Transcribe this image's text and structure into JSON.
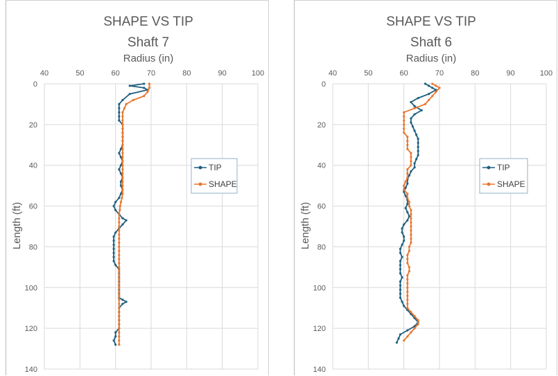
{
  "colors": {
    "tip": "#1f5f7f",
    "shape": "#e8772e",
    "grid": "#d9d9d9",
    "text": "#595959"
  },
  "chart_data": [
    {
      "type": "scatter",
      "title": "SHAPE VS TIP",
      "subtitle": "Shaft 7",
      "xlabel": "Radius (in)",
      "ylabel": "Length (ft)",
      "xlim": [
        40,
        100
      ],
      "ylim": [
        0,
        140
      ],
      "x_reversed": false,
      "y_reversed": true,
      "x_axis_position": "top",
      "x_ticks": [
        40,
        50,
        60,
        70,
        80,
        90,
        100
      ],
      "y_ticks": [
        0,
        20,
        40,
        60,
        80,
        100,
        120,
        140
      ],
      "grid": true,
      "legend": {
        "placement": "right",
        "entries": [
          "TIP",
          "SHAPE"
        ]
      },
      "series": [
        {
          "name": "TIP",
          "points": [
            [
              68,
              0
            ],
            [
              64,
              1
            ],
            [
              68,
              2
            ],
            [
              69,
              3
            ],
            [
              64,
              5
            ],
            [
              62,
              8
            ],
            [
              61,
              10
            ],
            [
              61,
              12
            ],
            [
              61,
              14
            ],
            [
              61,
              16
            ],
            [
              61,
              18
            ],
            [
              62,
              20
            ],
            [
              62,
              22
            ],
            [
              62,
              24
            ],
            [
              62,
              26
            ],
            [
              62,
              28
            ],
            [
              62,
              30
            ],
            [
              61.5,
              32
            ],
            [
              61,
              34
            ],
            [
              61.5,
              36
            ],
            [
              62,
              38
            ],
            [
              61.5,
              40
            ],
            [
              61,
              42
            ],
            [
              61.5,
              44
            ],
            [
              62,
              46
            ],
            [
              61.5,
              48
            ],
            [
              61.5,
              50
            ],
            [
              62,
              52
            ],
            [
              61.5,
              54
            ],
            [
              61,
              56
            ],
            [
              60,
              58
            ],
            [
              59.5,
              60
            ],
            [
              60,
              62
            ],
            [
              61,
              64
            ],
            [
              62,
              66
            ],
            [
              63,
              67
            ],
            [
              62,
              69
            ],
            [
              61,
              71
            ],
            [
              60,
              73
            ],
            [
              59.5,
              75
            ],
            [
              59.5,
              77
            ],
            [
              59.5,
              79
            ],
            [
              59.5,
              81
            ],
            [
              59.5,
              83
            ],
            [
              59.5,
              85
            ],
            [
              59.5,
              87
            ],
            [
              60,
              89
            ],
            [
              61,
              91
            ],
            [
              61,
              93
            ],
            [
              61,
              95
            ],
            [
              61,
              97
            ],
            [
              61,
              99
            ],
            [
              61,
              101
            ],
            [
              61,
              103
            ],
            [
              61,
              105
            ],
            [
              62,
              106
            ],
            [
              63,
              107
            ],
            [
              62,
              108
            ],
            [
              61,
              110
            ],
            [
              61,
              112
            ],
            [
              61,
              114
            ],
            [
              61,
              116
            ],
            [
              61,
              118
            ],
            [
              61,
              120
            ],
            [
              60,
              122
            ],
            [
              60,
              124
            ],
            [
              59.5,
              126
            ],
            [
              60,
              128
            ]
          ]
        },
        {
          "name": "SHAPE",
          "points": [
            [
              69.5,
              0
            ],
            [
              69.5,
              2
            ],
            [
              69,
              4
            ],
            [
              68,
              6
            ],
            [
              65,
              8
            ],
            [
              63,
              10
            ],
            [
              62.5,
              12
            ],
            [
              62,
              14
            ],
            [
              62,
              16
            ],
            [
              62,
              18
            ],
            [
              62,
              20
            ],
            [
              62,
              22
            ],
            [
              62,
              24
            ],
            [
              62,
              26
            ],
            [
              62,
              28
            ],
            [
              62,
              30
            ],
            [
              62,
              32
            ],
            [
              62,
              34
            ],
            [
              62,
              36
            ],
            [
              62,
              38
            ],
            [
              62,
              40
            ],
            [
              62,
              42
            ],
            [
              62,
              44
            ],
            [
              62,
              46
            ],
            [
              62,
              48
            ],
            [
              62,
              50
            ],
            [
              62,
              52
            ],
            [
              62,
              54
            ],
            [
              61.8,
              56
            ],
            [
              61.5,
              58
            ],
            [
              61.3,
              60
            ],
            [
              61.2,
              62
            ],
            [
              61,
              64
            ],
            [
              61,
              66
            ],
            [
              61,
              68
            ],
            [
              61,
              70
            ],
            [
              61,
              72
            ],
            [
              61,
              74
            ],
            [
              61,
              76
            ],
            [
              61,
              78
            ],
            [
              61,
              80
            ],
            [
              61,
              82
            ],
            [
              61,
              84
            ],
            [
              61,
              86
            ],
            [
              61,
              88
            ],
            [
              61,
              90
            ],
            [
              61,
              92
            ],
            [
              61,
              94
            ],
            [
              61,
              96
            ],
            [
              61,
              98
            ],
            [
              61,
              100
            ],
            [
              61,
              102
            ],
            [
              61,
              104
            ],
            [
              61,
              106
            ],
            [
              61,
              108
            ],
            [
              61,
              110
            ],
            [
              61,
              112
            ],
            [
              61,
              114
            ],
            [
              61,
              116
            ],
            [
              61,
              118
            ],
            [
              61,
              120
            ],
            [
              61,
              122
            ],
            [
              61,
              124
            ],
            [
              61,
              126
            ],
            [
              61,
              128
            ]
          ]
        }
      ]
    },
    {
      "type": "scatter",
      "title": "SHAPE VS TIP",
      "subtitle": "Shaft 6",
      "xlabel": "Radius (in)",
      "ylabel": "Length (ft)",
      "xlim": [
        40,
        100
      ],
      "ylim": [
        0,
        140
      ],
      "x_reversed": false,
      "y_reversed": true,
      "x_axis_position": "top",
      "x_ticks": [
        40,
        50,
        60,
        70,
        80,
        90,
        100
      ],
      "y_ticks": [
        0,
        20,
        40,
        60,
        80,
        100,
        120,
        140
      ],
      "grid": true,
      "legend": {
        "placement": "right",
        "entries": [
          "TIP",
          "SHAPE"
        ]
      },
      "series": [
        {
          "name": "TIP",
          "points": [
            [
              66,
              0
            ],
            [
              67,
              1
            ],
            [
              68,
              2
            ],
            [
              69,
              3
            ],
            [
              67,
              5
            ],
            [
              64,
              7
            ],
            [
              62,
              9
            ],
            [
              63,
              11
            ],
            [
              65,
              13
            ],
            [
              63,
              15
            ],
            [
              62,
              17
            ],
            [
              62,
              19
            ],
            [
              62.5,
              21
            ],
            [
              63,
              23
            ],
            [
              63.5,
              25
            ],
            [
              64,
              27
            ],
            [
              64,
              29
            ],
            [
              64,
              31
            ],
            [
              64,
              33
            ],
            [
              64,
              35
            ],
            [
              63.5,
              37
            ],
            [
              63,
              39
            ],
            [
              63,
              41
            ],
            [
              62,
              43
            ],
            [
              61.5,
              45
            ],
            [
              61,
              47
            ],
            [
              61,
              49
            ],
            [
              60.5,
              51
            ],
            [
              60,
              53
            ],
            [
              60.5,
              55
            ],
            [
              61,
              57
            ],
            [
              61,
              59
            ],
            [
              60.5,
              61
            ],
            [
              61,
              63
            ],
            [
              61.5,
              65
            ],
            [
              61,
              67
            ],
            [
              60,
              69
            ],
            [
              59.5,
              71
            ],
            [
              59.5,
              73
            ],
            [
              60,
              75
            ],
            [
              60,
              77
            ],
            [
              59.5,
              79
            ],
            [
              59,
              81
            ],
            [
              59,
              83
            ],
            [
              59.5,
              85
            ],
            [
              59,
              87
            ],
            [
              59,
              89
            ],
            [
              59,
              91
            ],
            [
              59,
              93
            ],
            [
              59.5,
              95
            ],
            [
              59,
              97
            ],
            [
              59,
              99
            ],
            [
              59,
              101
            ],
            [
              59,
              103
            ],
            [
              59,
              105
            ],
            [
              59.5,
              107
            ],
            [
              60,
              109
            ],
            [
              61,
              111
            ],
            [
              62,
              113
            ],
            [
              63,
              115
            ],
            [
              64,
              117
            ],
            [
              63,
              119
            ],
            [
              61,
              121
            ],
            [
              59,
              123
            ],
            [
              58.5,
              125
            ],
            [
              58,
              127
            ]
          ]
        },
        {
          "name": "SHAPE",
          "points": [
            [
              68,
              0
            ],
            [
              69,
              1
            ],
            [
              70,
              2
            ],
            [
              69,
              4
            ],
            [
              68,
              6
            ],
            [
              67,
              8
            ],
            [
              66,
              10
            ],
            [
              63,
              12
            ],
            [
              60,
              14
            ],
            [
              60,
              16
            ],
            [
              60,
              18
            ],
            [
              60,
              20
            ],
            [
              60,
              22
            ],
            [
              60,
              24
            ],
            [
              61,
              26
            ],
            [
              61,
              28
            ],
            [
              61,
              30
            ],
            [
              61,
              32
            ],
            [
              62,
              34
            ],
            [
              62,
              36
            ],
            [
              62,
              38
            ],
            [
              62,
              40
            ],
            [
              61,
              42
            ],
            [
              61,
              44
            ],
            [
              61,
              46
            ],
            [
              60.5,
              48
            ],
            [
              60,
              50
            ],
            [
              60,
              52
            ],
            [
              61,
              54
            ],
            [
              61,
              56
            ],
            [
              61.5,
              58
            ],
            [
              61.5,
              60
            ],
            [
              62,
              62
            ],
            [
              62,
              64
            ],
            [
              62,
              66
            ],
            [
              62,
              68
            ],
            [
              62,
              70
            ],
            [
              62,
              72
            ],
            [
              62,
              74
            ],
            [
              62,
              76
            ],
            [
              62,
              78
            ],
            [
              61.5,
              80
            ],
            [
              61.5,
              82
            ],
            [
              61,
              84
            ],
            [
              61,
              86
            ],
            [
              61,
              88
            ],
            [
              61.5,
              90
            ],
            [
              61.5,
              92
            ],
            [
              61,
              94
            ],
            [
              61,
              96
            ],
            [
              61,
              98
            ],
            [
              61,
              100
            ],
            [
              61,
              102
            ],
            [
              61,
              104
            ],
            [
              61,
              106
            ],
            [
              61,
              108
            ],
            [
              61,
              110
            ],
            [
              62,
              112
            ],
            [
              63,
              114
            ],
            [
              64,
              116
            ],
            [
              64,
              118
            ],
            [
              63,
              120
            ],
            [
              62,
              122
            ],
            [
              61,
              124
            ],
            [
              60,
              126
            ]
          ]
        }
      ]
    }
  ]
}
